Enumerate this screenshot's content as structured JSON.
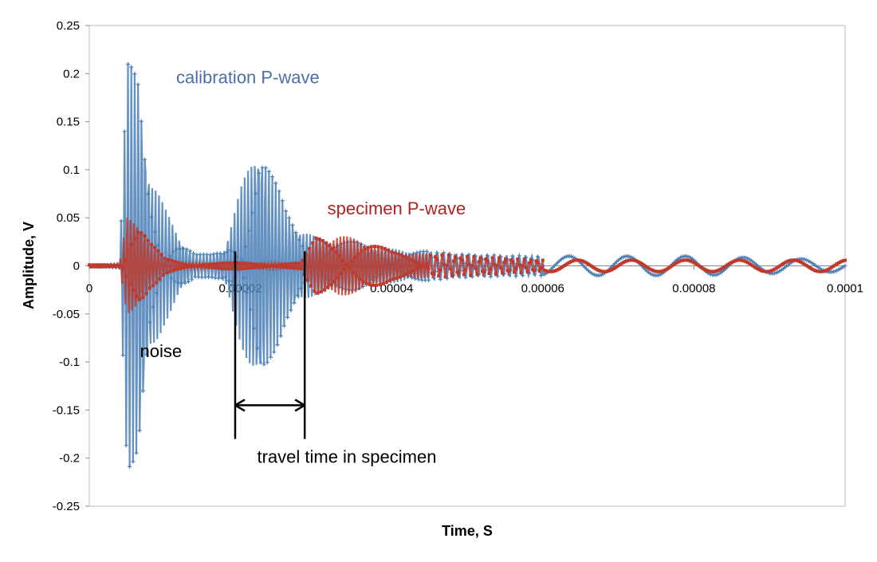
{
  "chart_data": {
    "type": "scatter",
    "title": "",
    "xlabel": "Time, S",
    "ylabel": "Amplitude, V",
    "xlim": [
      0,
      0.0001
    ],
    "ylim": [
      -0.25,
      0.25
    ],
    "x_ticks": [
      0,
      2e-05,
      4e-05,
      6e-05,
      8e-05,
      0.0001
    ],
    "x_tick_labels": [
      "0",
      "0.00002",
      "0.00004",
      "0.00006",
      "0.00008",
      "0.0001"
    ],
    "y_ticks": [
      0.25,
      0.2,
      0.15,
      0.1,
      0.05,
      0,
      -0.05,
      -0.1,
      -0.15,
      -0.2,
      -0.25
    ],
    "y_tick_labels": [
      "0.25",
      "0.2",
      "0.15",
      "0.1",
      "0.05",
      "0",
      "-0.05",
      "-0.1",
      "-0.15",
      "-0.2",
      "-0.25"
    ],
    "grid": false,
    "legend": "none",
    "series": [
      {
        "name": "calibration P-wave",
        "color": "#4a7fb5",
        "marker": "plus",
        "envelope": [
          [
            0,
            0.001
          ],
          [
            4e-06,
            0.002
          ],
          [
            5e-06,
            0.21
          ],
          [
            6.5e-06,
            0.21
          ],
          [
            8e-06,
            0.1
          ],
          [
            1e-05,
            0.06
          ],
          [
            1.2e-05,
            0.03
          ],
          [
            1.4e-05,
            0.012
          ],
          [
            1.6e-05,
            0.012
          ],
          [
            1.8e-05,
            0.02
          ],
          [
            2e-05,
            0.08
          ],
          [
            2.25e-05,
            0.14
          ],
          [
            2.4e-05,
            0.1
          ],
          [
            2.6e-05,
            0.06
          ],
          [
            2.8e-05,
            0.04
          ],
          [
            3e-05,
            0.03
          ],
          [
            3.5e-05,
            0.025
          ],
          [
            4e-05,
            0.018
          ],
          [
            5e-05,
            0.012
          ],
          [
            6e-05,
            0.01
          ],
          [
            8e-05,
            0.01
          ],
          [
            0.0001,
            0.006
          ]
        ]
      },
      {
        "name": "specimen P-wave",
        "color": "#c0392b",
        "marker": "square",
        "envelope": [
          [
            0,
            0.001
          ],
          [
            4e-06,
            0.002
          ],
          [
            5e-06,
            0.052
          ],
          [
            6.5e-06,
            0.052
          ],
          [
            8e-06,
            0.025
          ],
          [
            1e-05,
            0.008
          ],
          [
            1.3e-05,
            0.003
          ],
          [
            2.8e-05,
            0.003
          ],
          [
            3e-05,
            0.03
          ],
          [
            3.3e-05,
            0.032
          ],
          [
            3.6e-05,
            0.028
          ],
          [
            4e-05,
            0.015
          ],
          [
            5e-05,
            0.01
          ],
          [
            6e-05,
            0.006
          ],
          [
            8e-05,
            0.006
          ],
          [
            0.0001,
            0.006
          ]
        ]
      }
    ],
    "annotations": [
      {
        "text": "calibration P-wave",
        "color": "#4a6fa8",
        "x": 1.15e-05,
        "y": 0.19
      },
      {
        "text": "specimen P-wave",
        "color": "#b22222",
        "x": 3.15e-05,
        "y": 0.0535
      },
      {
        "text": "noise",
        "color": "#000000",
        "x": 6.7e-06,
        "y": -0.095
      },
      {
        "text": "travel time in specimen",
        "color": "#000000",
        "x": 2.22e-05,
        "y": -0.205
      }
    ],
    "travel_time_marker": {
      "start": 1.93e-05,
      "end": 2.85e-05,
      "line_from": 0.015,
      "line_to": -0.18,
      "arrow_at": -0.145
    }
  }
}
